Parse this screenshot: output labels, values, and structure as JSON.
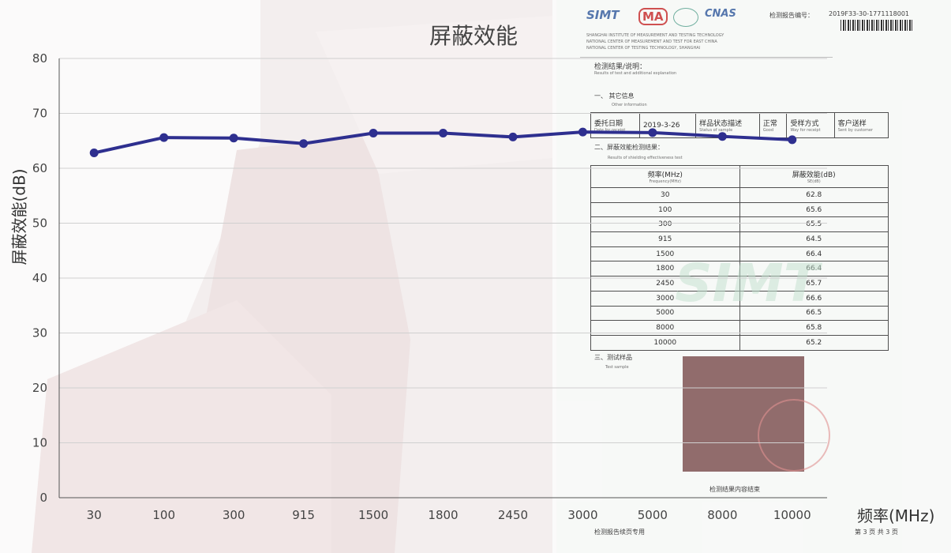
{
  "chart_data": {
    "type": "line",
    "title": "屏蔽效能",
    "xlabel": "频率(MHz)",
    "ylabel": "屏蔽效能(dB)",
    "categories": [
      "30",
      "100",
      "300",
      "915",
      "1500",
      "1800",
      "2450",
      "3000",
      "5000",
      "8000",
      "10000"
    ],
    "series": [
      {
        "values": [
          62.8,
          65.6,
          65.5,
          64.5,
          66.4,
          66.4,
          65.7,
          66.6,
          66.5,
          65.8,
          65.2
        ]
      }
    ],
    "ylim": [
      0,
      80
    ],
    "yticks": [
      "0",
      "10",
      "20",
      "30",
      "40",
      "50",
      "60",
      "70",
      "80"
    ],
    "grid": true,
    "line_color": "#2e2f8f"
  },
  "report": {
    "report_no_label": "检测报告编号：",
    "report_no": "2019F33-30-1771118001",
    "institute": [
      "SHANGHAI INSTITUTE OF MEASUREMENT AND TESTING TECHNOLOGY",
      "NATIONAL CENTER OF MEASUREMENT AND TEST FOR EAST CHINA",
      "NATIONAL CENTER OF TESTING TECHNOLOGY, SHANGHAI"
    ],
    "section_results": "检测结果/说明：",
    "section_results_en": "Results of test and additional explanation",
    "section1": "一、 其它信息",
    "section1_en": "Other information",
    "info_row": [
      "委托日期",
      "2019-3-26",
      "样品状态描述",
      "正常",
      "受样方式",
      "客户送样"
    ],
    "info_row_en": [
      "Date for receipt",
      "",
      "Status of sample",
      "Good",
      "Way for receipt",
      "Sent by customer"
    ],
    "section2": "二、屏蔽效能检测结果：",
    "section2_en": "Results of shielding effectiveness test",
    "table_head": [
      "频率(MHz)",
      "屏蔽效能(dB)"
    ],
    "table_head_en": [
      "Frequency(MHz)",
      "SE(dB)"
    ],
    "table_rows": [
      [
        "30",
        "62.8"
      ],
      [
        "100",
        "65.6"
      ],
      [
        "300",
        "65.5"
      ],
      [
        "915",
        "64.5"
      ],
      [
        "1500",
        "66.4"
      ],
      [
        "1800",
        "66.4"
      ],
      [
        "2450",
        "65.7"
      ],
      [
        "3000",
        "66.6"
      ],
      [
        "5000",
        "66.5"
      ],
      [
        "8000",
        "65.8"
      ],
      [
        "10000",
        "65.2"
      ]
    ],
    "section3": "三、测试样品",
    "section3_en": "Test sample",
    "end_note": "检测结果内容结束",
    "footer_left": "检测报告续页专用",
    "footer_right": "第 3 页 共 3 页",
    "logo_simt": "SIMT",
    "logo_ma": "MA",
    "logo_cnas": "CNAS",
    "watermark": "SIMT",
    "sample_color": "#8a6262"
  }
}
